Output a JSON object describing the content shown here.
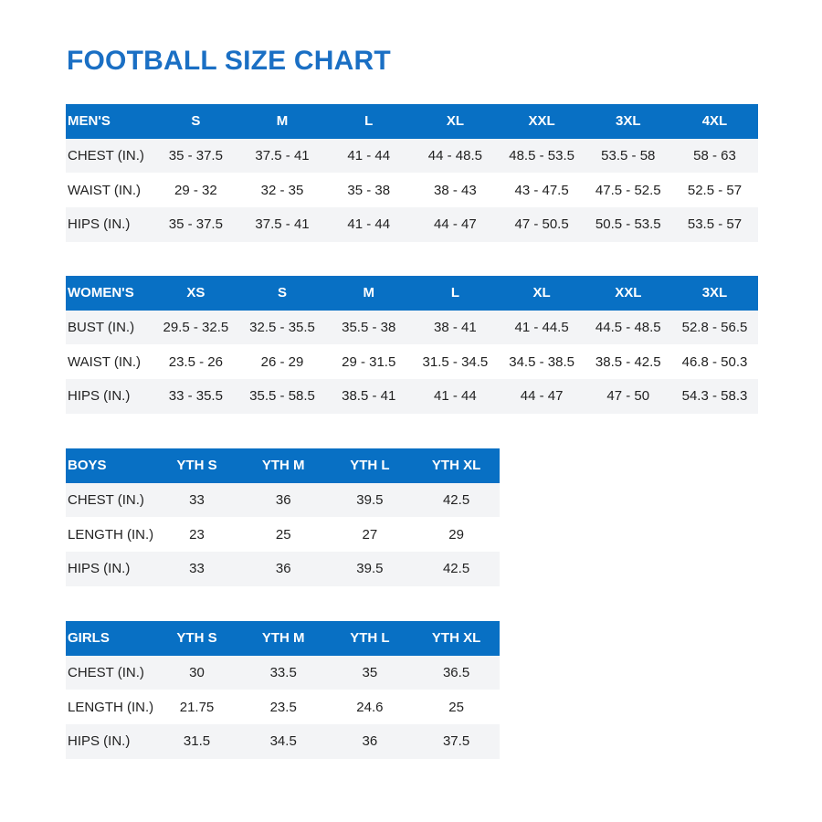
{
  "title": "FOOTBALL SIZE CHART",
  "colors": {
    "header_bg": "#0870c4",
    "title": "#1a6fc4",
    "alt_row": "#f3f4f6"
  },
  "tables": [
    {
      "label": "MEN'S",
      "sizes": [
        "S",
        "M",
        "L",
        "XL",
        "XXL",
        "3XL",
        "4XL"
      ],
      "rows": [
        {
          "measure": "CHEST (IN.)",
          "values": [
            "35 - 37.5",
            "37.5 - 41",
            "41 - 44",
            "44 - 48.5",
            "48.5 - 53.5",
            "53.5 - 58",
            "58 - 63"
          ]
        },
        {
          "measure": "WAIST (IN.)",
          "values": [
            "29 - 32",
            "32 - 35",
            "35 - 38",
            "38 - 43",
            "43 - 47.5",
            "47.5 - 52.5",
            "52.5 - 57"
          ]
        },
        {
          "measure": "HIPS (IN.)",
          "values": [
            "35 - 37.5",
            "37.5 - 41",
            "41 - 44",
            "44 - 47",
            "47 - 50.5",
            "50.5 - 53.5",
            "53.5 - 57"
          ]
        }
      ]
    },
    {
      "label": "WOMEN'S",
      "sizes": [
        "XS",
        "S",
        "M",
        "L",
        "XL",
        "XXL",
        "3XL"
      ],
      "rows": [
        {
          "measure": "BUST (IN.)",
          "values": [
            "29.5 - 32.5",
            "32.5 - 35.5",
            "35.5 - 38",
            "38 - 41",
            "41 - 44.5",
            "44.5 - 48.5",
            "52.8 - 56.5"
          ]
        },
        {
          "measure": "WAIST (IN.)",
          "values": [
            "23.5 - 26",
            "26 - 29",
            "29 - 31.5",
            "31.5 - 34.5",
            "34.5 - 38.5",
            "38.5 - 42.5",
            "46.8 - 50.3"
          ]
        },
        {
          "measure": "HIPS (IN.)",
          "values": [
            "33 - 35.5",
            "35.5 - 58.5",
            "38.5 - 41",
            "41 - 44",
            "44 - 47",
            "47 - 50",
            "54.3 - 58.3"
          ]
        }
      ]
    },
    {
      "label": "BOYS",
      "sizes": [
        "YTH S",
        "YTH M",
        "YTH L",
        "YTH XL"
      ],
      "rows": [
        {
          "measure": "CHEST (IN.)",
          "values": [
            "33",
            "36",
            "39.5",
            "42.5"
          ]
        },
        {
          "measure": "LENGTH (IN.)",
          "values": [
            "23",
            "25",
            "27",
            "29"
          ]
        },
        {
          "measure": "HIPS (IN.)",
          "values": [
            "33",
            "36",
            "39.5",
            "42.5"
          ]
        }
      ]
    },
    {
      "label": "GIRLS",
      "sizes": [
        "YTH S",
        "YTH M",
        "YTH L",
        "YTH XL"
      ],
      "rows": [
        {
          "measure": "CHEST (IN.)",
          "values": [
            "30",
            "33.5",
            "35",
            "36.5"
          ]
        },
        {
          "measure": "LENGTH (IN.)",
          "values": [
            "21.75",
            "23.5",
            "24.6",
            "25"
          ]
        },
        {
          "measure": "HIPS (IN.)",
          "values": [
            "31.5",
            "34.5",
            "36",
            "37.5"
          ]
        }
      ]
    }
  ]
}
